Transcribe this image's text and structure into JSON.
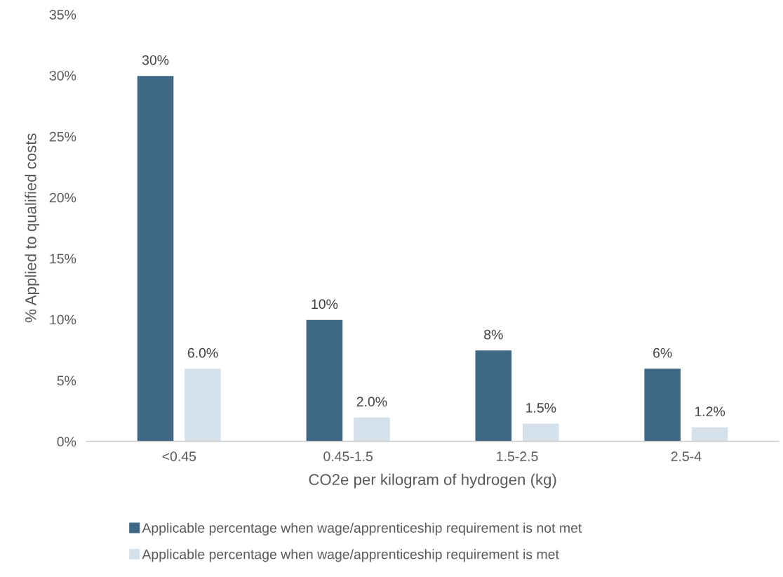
{
  "chart_data": {
    "type": "bar",
    "xlabel": "CO2e per kilogram of hydrogen (kg)",
    "ylabel": "% Applied to qualified costs",
    "categories": [
      "<0.45",
      "0.45-1.5",
      "1.5-2.5",
      "2.5-4"
    ],
    "series": [
      {
        "name": "Applicable percentage when wage/apprenticeship requirement is not met",
        "color": "#3e6886",
        "values": [
          30,
          10,
          7.5,
          6
        ],
        "value_labels": [
          "30%",
          "10%",
          "8%",
          "6%"
        ]
      },
      {
        "name": "Applicable percentage when wage/apprenticeship requirement is met",
        "color": "#d5e1ea",
        "values": [
          6,
          2,
          1.5,
          1.2
        ],
        "value_labels": [
          "6.0%",
          "2.0%",
          "1.5%",
          "1.2%"
        ]
      }
    ],
    "ylim": [
      0,
      35
    ],
    "yticks": [
      {
        "value": 0,
        "label": "0%"
      },
      {
        "value": 5,
        "label": "5%"
      },
      {
        "value": 10,
        "label": "10%"
      },
      {
        "value": 15,
        "label": "15%"
      },
      {
        "value": 20,
        "label": "20%"
      },
      {
        "value": 25,
        "label": "25%"
      },
      {
        "value": 30,
        "label": "30%"
      },
      {
        "value": 35,
        "label": "35%"
      }
    ],
    "grid": false,
    "legend": "bottom"
  }
}
